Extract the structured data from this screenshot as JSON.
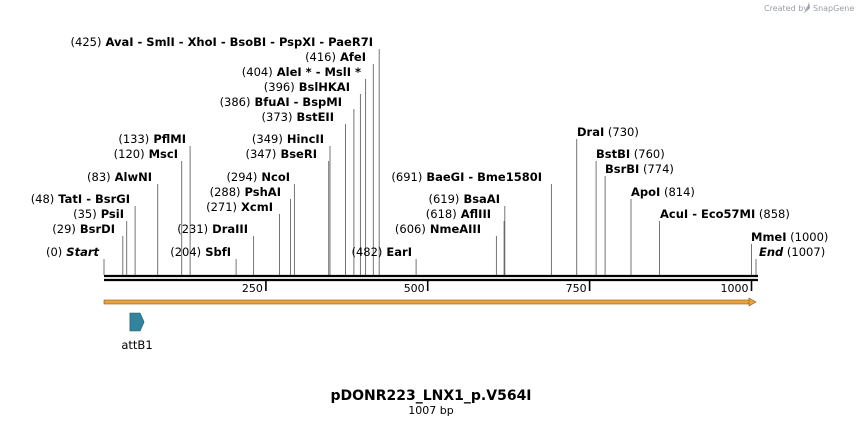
{
  "credit": {
    "prefix": "Created by",
    "brand": "SnapGene"
  },
  "plasmid": {
    "name": "pDONR223_LNX1_p.V564I",
    "length_label": "1007 bp",
    "length": 1007
  },
  "scale": {
    "ticks": [
      250,
      500,
      750,
      1000
    ]
  },
  "feature": {
    "name": "attB1",
    "color": "#31849b",
    "start": 40,
    "end": 62
  },
  "orf": {
    "color": "#e8a33c",
    "start": 0,
    "end": 1007
  },
  "cut_sites": [
    {
      "id": "start",
      "pos": 0,
      "parts": [
        {
          "t": "(0)",
          "k": "pos"
        },
        {
          "t": "Start",
          "k": "ital"
        }
      ]
    },
    {
      "id": "bsrdi",
      "pos": 29,
      "parts": [
        {
          "t": "(29)",
          "k": "pos"
        },
        {
          "t": "BsrDI",
          "k": "enz"
        }
      ]
    },
    {
      "id": "psii",
      "pos": 35,
      "parts": [
        {
          "t": "(35)",
          "k": "pos"
        },
        {
          "t": "PsiI",
          "k": "enz"
        }
      ]
    },
    {
      "id": "tati",
      "pos": 48,
      "parts": [
        {
          "t": "(48)",
          "k": "pos"
        },
        {
          "t": "TatI",
          "k": "enz"
        },
        {
          "t": "-",
          "k": "sep"
        },
        {
          "t": "BsrGI",
          "k": "enz"
        }
      ]
    },
    {
      "id": "alwni",
      "pos": 83,
      "parts": [
        {
          "t": "(83)",
          "k": "pos"
        },
        {
          "t": "AlwNI",
          "k": "enz"
        }
      ]
    },
    {
      "id": "msci",
      "pos": 120,
      "parts": [
        {
          "t": "(120)",
          "k": "pos"
        },
        {
          "t": "MscI",
          "k": "enz"
        }
      ]
    },
    {
      "id": "pflmi",
      "pos": 133,
      "parts": [
        {
          "t": "(133)",
          "k": "pos"
        },
        {
          "t": "PflMI",
          "k": "enz"
        }
      ]
    },
    {
      "id": "sbfi",
      "pos": 204,
      "parts": [
        {
          "t": "(204)",
          "k": "pos"
        },
        {
          "t": "SbfI",
          "k": "enz"
        }
      ]
    },
    {
      "id": "draiii",
      "pos": 231,
      "parts": [
        {
          "t": "(231)",
          "k": "pos"
        },
        {
          "t": "DraIII",
          "k": "enz"
        }
      ]
    },
    {
      "id": "xcmi",
      "pos": 271,
      "parts": [
        {
          "t": "(271)",
          "k": "pos"
        },
        {
          "t": "XcmI",
          "k": "enz"
        }
      ]
    },
    {
      "id": "pshai",
      "pos": 288,
      "parts": [
        {
          "t": "(288)",
          "k": "pos"
        },
        {
          "t": "PshAI",
          "k": "enz"
        }
      ]
    },
    {
      "id": "ncoi",
      "pos": 294,
      "parts": [
        {
          "t": "(294)",
          "k": "pos"
        },
        {
          "t": "NcoI",
          "k": "enz"
        }
      ]
    },
    {
      "id": "bseri",
      "pos": 347,
      "parts": [
        {
          "t": "(347)",
          "k": "pos"
        },
        {
          "t": "BseRI",
          "k": "enz"
        }
      ]
    },
    {
      "id": "hincii",
      "pos": 349,
      "parts": [
        {
          "t": "(349)",
          "k": "pos"
        },
        {
          "t": "HincII",
          "k": "enz"
        }
      ]
    },
    {
      "id": "bsteii",
      "pos": 373,
      "parts": [
        {
          "t": "(373)",
          "k": "pos"
        },
        {
          "t": "BstEII",
          "k": "enz"
        }
      ]
    },
    {
      "id": "bfuai",
      "pos": 386,
      "parts": [
        {
          "t": "(386)",
          "k": "pos"
        },
        {
          "t": "BfuAI",
          "k": "enz"
        },
        {
          "t": "-",
          "k": "sep"
        },
        {
          "t": "BspMI",
          "k": "enz"
        }
      ]
    },
    {
      "id": "bslhkai",
      "pos": 396,
      "parts": [
        {
          "t": "(396)",
          "k": "pos"
        },
        {
          "t": "BslHKAI",
          "k": "enz"
        }
      ]
    },
    {
      "id": "alei",
      "pos": 404,
      "parts": [
        {
          "t": "(404)",
          "k": "pos"
        },
        {
          "t": "AleI *",
          "k": "enz"
        },
        {
          "t": "-",
          "k": "sep"
        },
        {
          "t": "MslI *",
          "k": "enz"
        }
      ]
    },
    {
      "id": "afei",
      "pos": 416,
      "parts": [
        {
          "t": "(416)",
          "k": "pos"
        },
        {
          "t": "AfeI",
          "k": "enz"
        }
      ]
    },
    {
      "id": "avai",
      "pos": 425,
      "parts": [
        {
          "t": "(425)",
          "k": "pos"
        },
        {
          "t": "AvaI",
          "k": "enz"
        },
        {
          "t": "-",
          "k": "sep"
        },
        {
          "t": "SmlI",
          "k": "enz"
        },
        {
          "t": "-",
          "k": "sep"
        },
        {
          "t": "XhoI",
          "k": "enz"
        },
        {
          "t": "-",
          "k": "sep"
        },
        {
          "t": "BsoBI",
          "k": "enz"
        },
        {
          "t": "-",
          "k": "sep"
        },
        {
          "t": "PspXI",
          "k": "enz"
        },
        {
          "t": "-",
          "k": "sep"
        },
        {
          "t": "PaeR7I",
          "k": "enz"
        }
      ]
    },
    {
      "id": "eari",
      "pos": 482,
      "parts": [
        {
          "t": "(482)",
          "k": "pos"
        },
        {
          "t": "EarI",
          "k": "enz"
        }
      ]
    },
    {
      "id": "nmeaiii",
      "pos": 606,
      "parts": [
        {
          "t": "(606)",
          "k": "pos"
        },
        {
          "t": "NmeAIII",
          "k": "enz"
        }
      ]
    },
    {
      "id": "afliii",
      "pos": 618,
      "parts": [
        {
          "t": "(618)",
          "k": "pos"
        },
        {
          "t": "AflIII",
          "k": "enz"
        }
      ]
    },
    {
      "id": "bsaai",
      "pos": 619,
      "parts": [
        {
          "t": "(619)",
          "k": "pos"
        },
        {
          "t": "BsaAI",
          "k": "enz"
        }
      ]
    },
    {
      "id": "baegi",
      "pos": 691,
      "parts": [
        {
          "t": "(691)",
          "k": "pos"
        },
        {
          "t": "BaeGI",
          "k": "enz"
        },
        {
          "t": "-",
          "k": "sep"
        },
        {
          "t": "Bme1580I",
          "k": "enz"
        }
      ]
    },
    {
      "id": "drai",
      "pos": 730,
      "parts": [
        {
          "t": "DraI",
          "k": "enz"
        },
        {
          "t": "(730)",
          "k": "pos"
        }
      ]
    },
    {
      "id": "bstbi",
      "pos": 760,
      "parts": [
        {
          "t": "BstBI",
          "k": "enz"
        },
        {
          "t": "(760)",
          "k": "pos"
        }
      ]
    },
    {
      "id": "bsrbi",
      "pos": 774,
      "parts": [
        {
          "t": "BsrBI",
          "k": "enz"
        },
        {
          "t": "(774)",
          "k": "pos"
        }
      ]
    },
    {
      "id": "apoi",
      "pos": 814,
      "parts": [
        {
          "t": "ApoI",
          "k": "enz"
        },
        {
          "t": "(814)",
          "k": "pos"
        }
      ]
    },
    {
      "id": "acui",
      "pos": 858,
      "parts": [
        {
          "t": "AcuI",
          "k": "enz"
        },
        {
          "t": "-",
          "k": "sep"
        },
        {
          "t": "Eco57MI",
          "k": "enz"
        },
        {
          "t": "(858)",
          "k": "pos"
        }
      ]
    },
    {
      "id": "mmei",
      "pos": 1000,
      "parts": [
        {
          "t": "MmeI",
          "k": "enz"
        },
        {
          "t": "(1000)",
          "k": "pos"
        }
      ]
    },
    {
      "id": "end",
      "pos": 1007,
      "parts": [
        {
          "t": "End",
          "k": "ital"
        },
        {
          "t": "(1007)",
          "k": "pos"
        }
      ]
    }
  ]
}
